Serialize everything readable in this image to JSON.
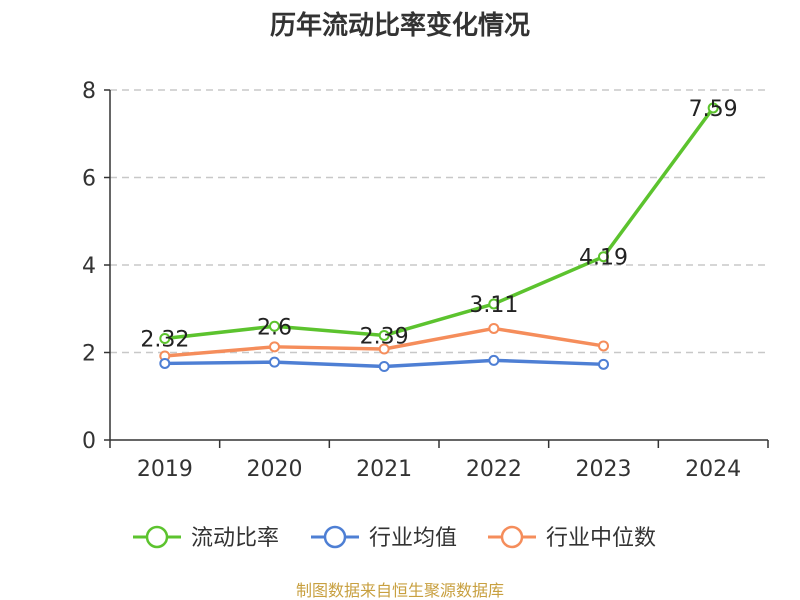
{
  "chart_data": {
    "type": "line",
    "title": "历年流动比率变化情况",
    "categories": [
      "2019",
      "2020",
      "2021",
      "2022",
      "2023",
      "2024"
    ],
    "ylim": [
      0,
      8
    ],
    "yticks": [
      0,
      2,
      4,
      6,
      8
    ],
    "grid": true,
    "legend_position": "bottom",
    "series": [
      {
        "name": "流动比率",
        "color": "#5cc32e",
        "values": [
          2.32,
          2.6,
          2.39,
          3.11,
          4.19,
          7.59
        ],
        "labels": [
          "2.32",
          "2.6",
          "2.39",
          "3.11",
          "4.19",
          "7.59"
        ]
      },
      {
        "name": "行业均值",
        "color": "#4e7fd4",
        "values": [
          1.75,
          1.78,
          1.68,
          1.82,
          1.73,
          null
        ]
      },
      {
        "name": "行业中位数",
        "color": "#f58d5b",
        "values": [
          1.92,
          2.13,
          2.08,
          2.55,
          2.15,
          null
        ]
      }
    ]
  },
  "source": "制图数据来自恒生聚源数据库"
}
